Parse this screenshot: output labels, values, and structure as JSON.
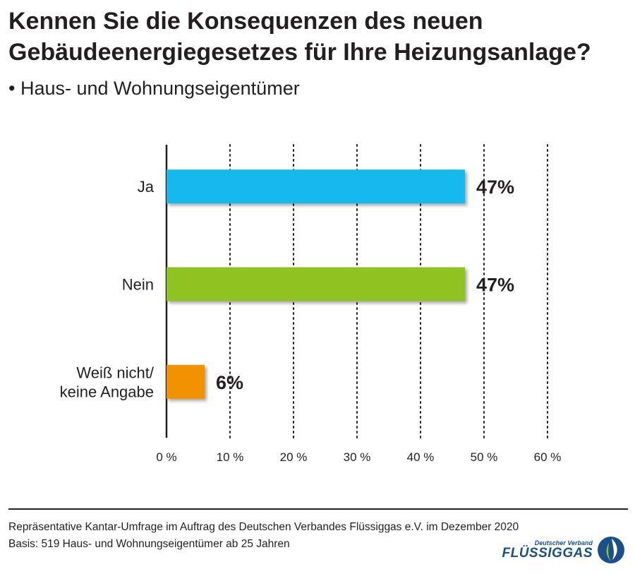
{
  "header": {
    "title_line1": "Kennen Sie die Konsequenzen des neuen",
    "title_line2": "Gebäudeenergiegesetzes für Ihre Heizungsanlage?",
    "subtitle": "• Haus- und Wohnungseigentümer"
  },
  "chart_data": {
    "type": "bar",
    "orientation": "horizontal",
    "categories": [
      [
        "Ja"
      ],
      [
        "Nein"
      ],
      [
        "Weiß nicht/",
        "keine Angabe"
      ]
    ],
    "values": [
      47,
      47,
      6
    ],
    "value_labels": [
      "47%",
      "47%",
      "6%"
    ],
    "colors": [
      "#12b9ee",
      "#8fc320",
      "#f39200"
    ],
    "xlim": [
      0,
      60
    ],
    "ticks": [
      0,
      10,
      20,
      30,
      40,
      50,
      60
    ],
    "tick_labels": [
      "0 %",
      "10 %",
      "20 %",
      "30 %",
      "40 %",
      "50 %",
      "60 %"
    ],
    "grid": true
  },
  "footer": {
    "source_line1": "Repräsentative Kantar-Umfrage im Auftrag des Deutschen Verbandes Flüssiggas e.V. im Dezember 2020",
    "source_line2": "Basis: 519 Haus- und Wohnungseigentümer ab 25 Jahren",
    "logo_small": "Deutscher Verband",
    "logo_big": "FLÜSSIGGAS"
  }
}
